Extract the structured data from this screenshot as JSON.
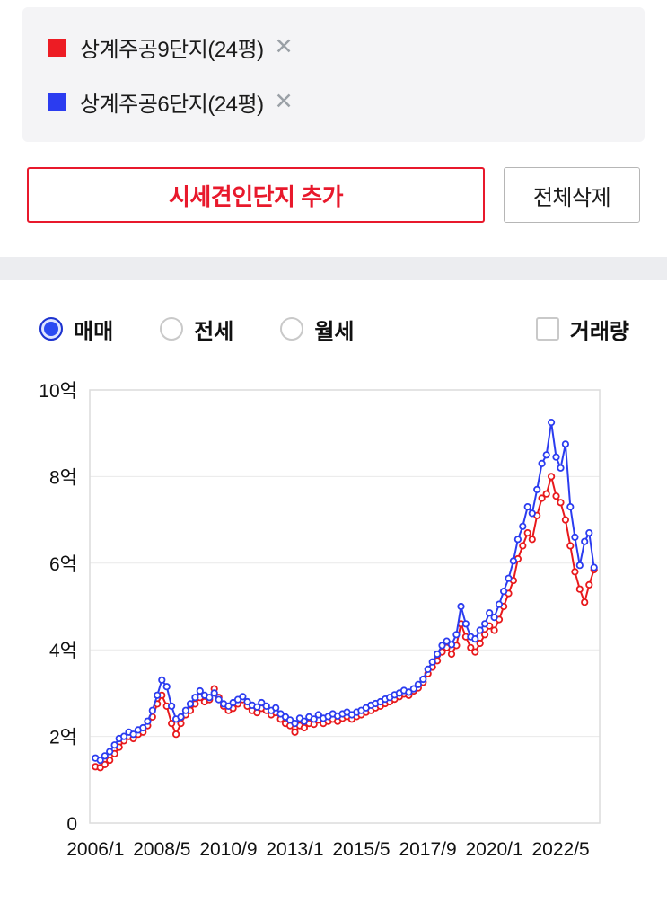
{
  "legend": {
    "close_icon": "✕",
    "items": [
      {
        "label": "상계주공9단지(24평)",
        "color": "#ed1c24"
      },
      {
        "label": "상계주공6단지(24평)",
        "color": "#2b3cf0"
      }
    ]
  },
  "actions": {
    "add_label": "시세견인단지 추가",
    "clear_label": "전체삭제"
  },
  "controls": {
    "radios": [
      {
        "label": "매매",
        "selected": true
      },
      {
        "label": "전세",
        "selected": false
      },
      {
        "label": "월세",
        "selected": false
      }
    ],
    "checkbox": {
      "label": "거래량",
      "checked": false
    }
  },
  "chart_data": {
    "type": "line",
    "title": "",
    "ylabel": "",
    "xlabel": "",
    "unit": "억",
    "grid": true,
    "xlim": [
      2005.8,
      2023.7
    ],
    "ylim": [
      0,
      10
    ],
    "yticks": [
      {
        "v": 0,
        "label": "0"
      },
      {
        "v": 2,
        "label": "2억"
      },
      {
        "v": 4,
        "label": "4억"
      },
      {
        "v": 6,
        "label": "6억"
      },
      {
        "v": 8,
        "label": "8억"
      },
      {
        "v": 10,
        "label": "10억"
      }
    ],
    "xticks": [
      {
        "v": 2006.0,
        "label": "2006/1"
      },
      {
        "v": 2008.333,
        "label": "2008/5"
      },
      {
        "v": 2010.667,
        "label": "2010/9"
      },
      {
        "v": 2013.0,
        "label": "2013/1"
      },
      {
        "v": 2015.333,
        "label": "2015/5"
      },
      {
        "v": 2017.667,
        "label": "2017/9"
      },
      {
        "v": 2020.0,
        "label": "2020/1"
      },
      {
        "v": 2022.333,
        "label": "2022/5"
      }
    ],
    "x": [
      2006,
      2006.17,
      2006.33,
      2006.5,
      2006.67,
      2006.83,
      2007,
      2007.17,
      2007.33,
      2007.5,
      2007.67,
      2007.83,
      2008,
      2008.17,
      2008.33,
      2008.5,
      2008.67,
      2008.83,
      2009,
      2009.17,
      2009.33,
      2009.5,
      2009.67,
      2009.83,
      2010,
      2010.17,
      2010.33,
      2010.5,
      2010.67,
      2010.83,
      2011,
      2011.17,
      2011.33,
      2011.5,
      2011.67,
      2011.83,
      2012,
      2012.17,
      2012.33,
      2012.5,
      2012.67,
      2012.83,
      2013,
      2013.17,
      2013.33,
      2013.5,
      2013.67,
      2013.83,
      2014,
      2014.17,
      2014.33,
      2014.5,
      2014.67,
      2014.83,
      2015,
      2015.17,
      2015.33,
      2015.5,
      2015.67,
      2015.83,
      2016,
      2016.17,
      2016.33,
      2016.5,
      2016.67,
      2016.83,
      2017,
      2017.17,
      2017.33,
      2017.5,
      2017.67,
      2017.83,
      2018,
      2018.17,
      2018.33,
      2018.5,
      2018.67,
      2018.83,
      2019,
      2019.17,
      2019.33,
      2019.5,
      2019.67,
      2019.83,
      2020,
      2020.17,
      2020.33,
      2020.5,
      2020.67,
      2020.83,
      2021,
      2021.17,
      2021.33,
      2021.5,
      2021.67,
      2021.83,
      2022,
      2022.17,
      2022.33,
      2022.5,
      2022.67,
      2022.83,
      2023,
      2023.17,
      2023.33,
      2023.5
    ],
    "series": [
      {
        "name": "상계주공9단지(24평)",
        "color": "#e8191c",
        "values": [
          1.3,
          1.28,
          1.35,
          1.45,
          1.6,
          1.75,
          1.9,
          2.0,
          1.95,
          2.05,
          2.1,
          2.25,
          2.45,
          2.75,
          2.95,
          2.7,
          2.3,
          2.05,
          2.3,
          2.5,
          2.6,
          2.75,
          2.9,
          2.8,
          2.85,
          3.1,
          2.9,
          2.7,
          2.6,
          2.65,
          2.75,
          2.85,
          2.7,
          2.6,
          2.55,
          2.65,
          2.6,
          2.5,
          2.55,
          2.4,
          2.3,
          2.25,
          2.1,
          2.25,
          2.2,
          2.3,
          2.28,
          2.38,
          2.3,
          2.35,
          2.4,
          2.35,
          2.42,
          2.46,
          2.4,
          2.46,
          2.5,
          2.56,
          2.6,
          2.66,
          2.7,
          2.76,
          2.8,
          2.86,
          2.92,
          2.98,
          2.95,
          3.05,
          3.12,
          3.25,
          3.45,
          3.6,
          3.75,
          3.95,
          4.05,
          3.9,
          4.1,
          4.6,
          4.3,
          4.05,
          3.95,
          4.15,
          4.35,
          4.55,
          4.45,
          4.7,
          5.0,
          5.3,
          5.6,
          6.1,
          6.4,
          6.7,
          6.55,
          7.1,
          7.5,
          7.6,
          8.0,
          7.55,
          7.4,
          7.0,
          6.4,
          5.8,
          5.4,
          5.1,
          5.5,
          5.85
        ]
      },
      {
        "name": "상계주공6단지(24평)",
        "color": "#2b3cf0",
        "values": [
          1.5,
          1.45,
          1.55,
          1.65,
          1.8,
          1.95,
          2.0,
          2.1,
          2.05,
          2.15,
          2.2,
          2.35,
          2.6,
          2.95,
          3.3,
          3.15,
          2.7,
          2.4,
          2.45,
          2.6,
          2.75,
          2.9,
          3.05,
          2.95,
          2.9,
          3.0,
          2.85,
          2.75,
          2.7,
          2.78,
          2.85,
          2.92,
          2.8,
          2.72,
          2.68,
          2.78,
          2.7,
          2.6,
          2.66,
          2.52,
          2.45,
          2.38,
          2.3,
          2.42,
          2.35,
          2.45,
          2.4,
          2.5,
          2.42,
          2.46,
          2.52,
          2.47,
          2.52,
          2.56,
          2.5,
          2.56,
          2.6,
          2.66,
          2.72,
          2.76,
          2.8,
          2.86,
          2.9,
          2.96,
          3.0,
          3.06,
          3.02,
          3.1,
          3.2,
          3.32,
          3.55,
          3.72,
          3.9,
          4.1,
          4.2,
          4.12,
          4.35,
          5.0,
          4.6,
          4.3,
          4.25,
          4.45,
          4.6,
          4.85,
          4.75,
          5.05,
          5.35,
          5.65,
          6.05,
          6.55,
          6.85,
          7.3,
          7.15,
          7.7,
          8.3,
          8.5,
          9.25,
          8.45,
          8.2,
          8.75,
          7.3,
          6.6,
          5.95,
          6.5,
          6.7,
          5.9
        ]
      }
    ]
  }
}
